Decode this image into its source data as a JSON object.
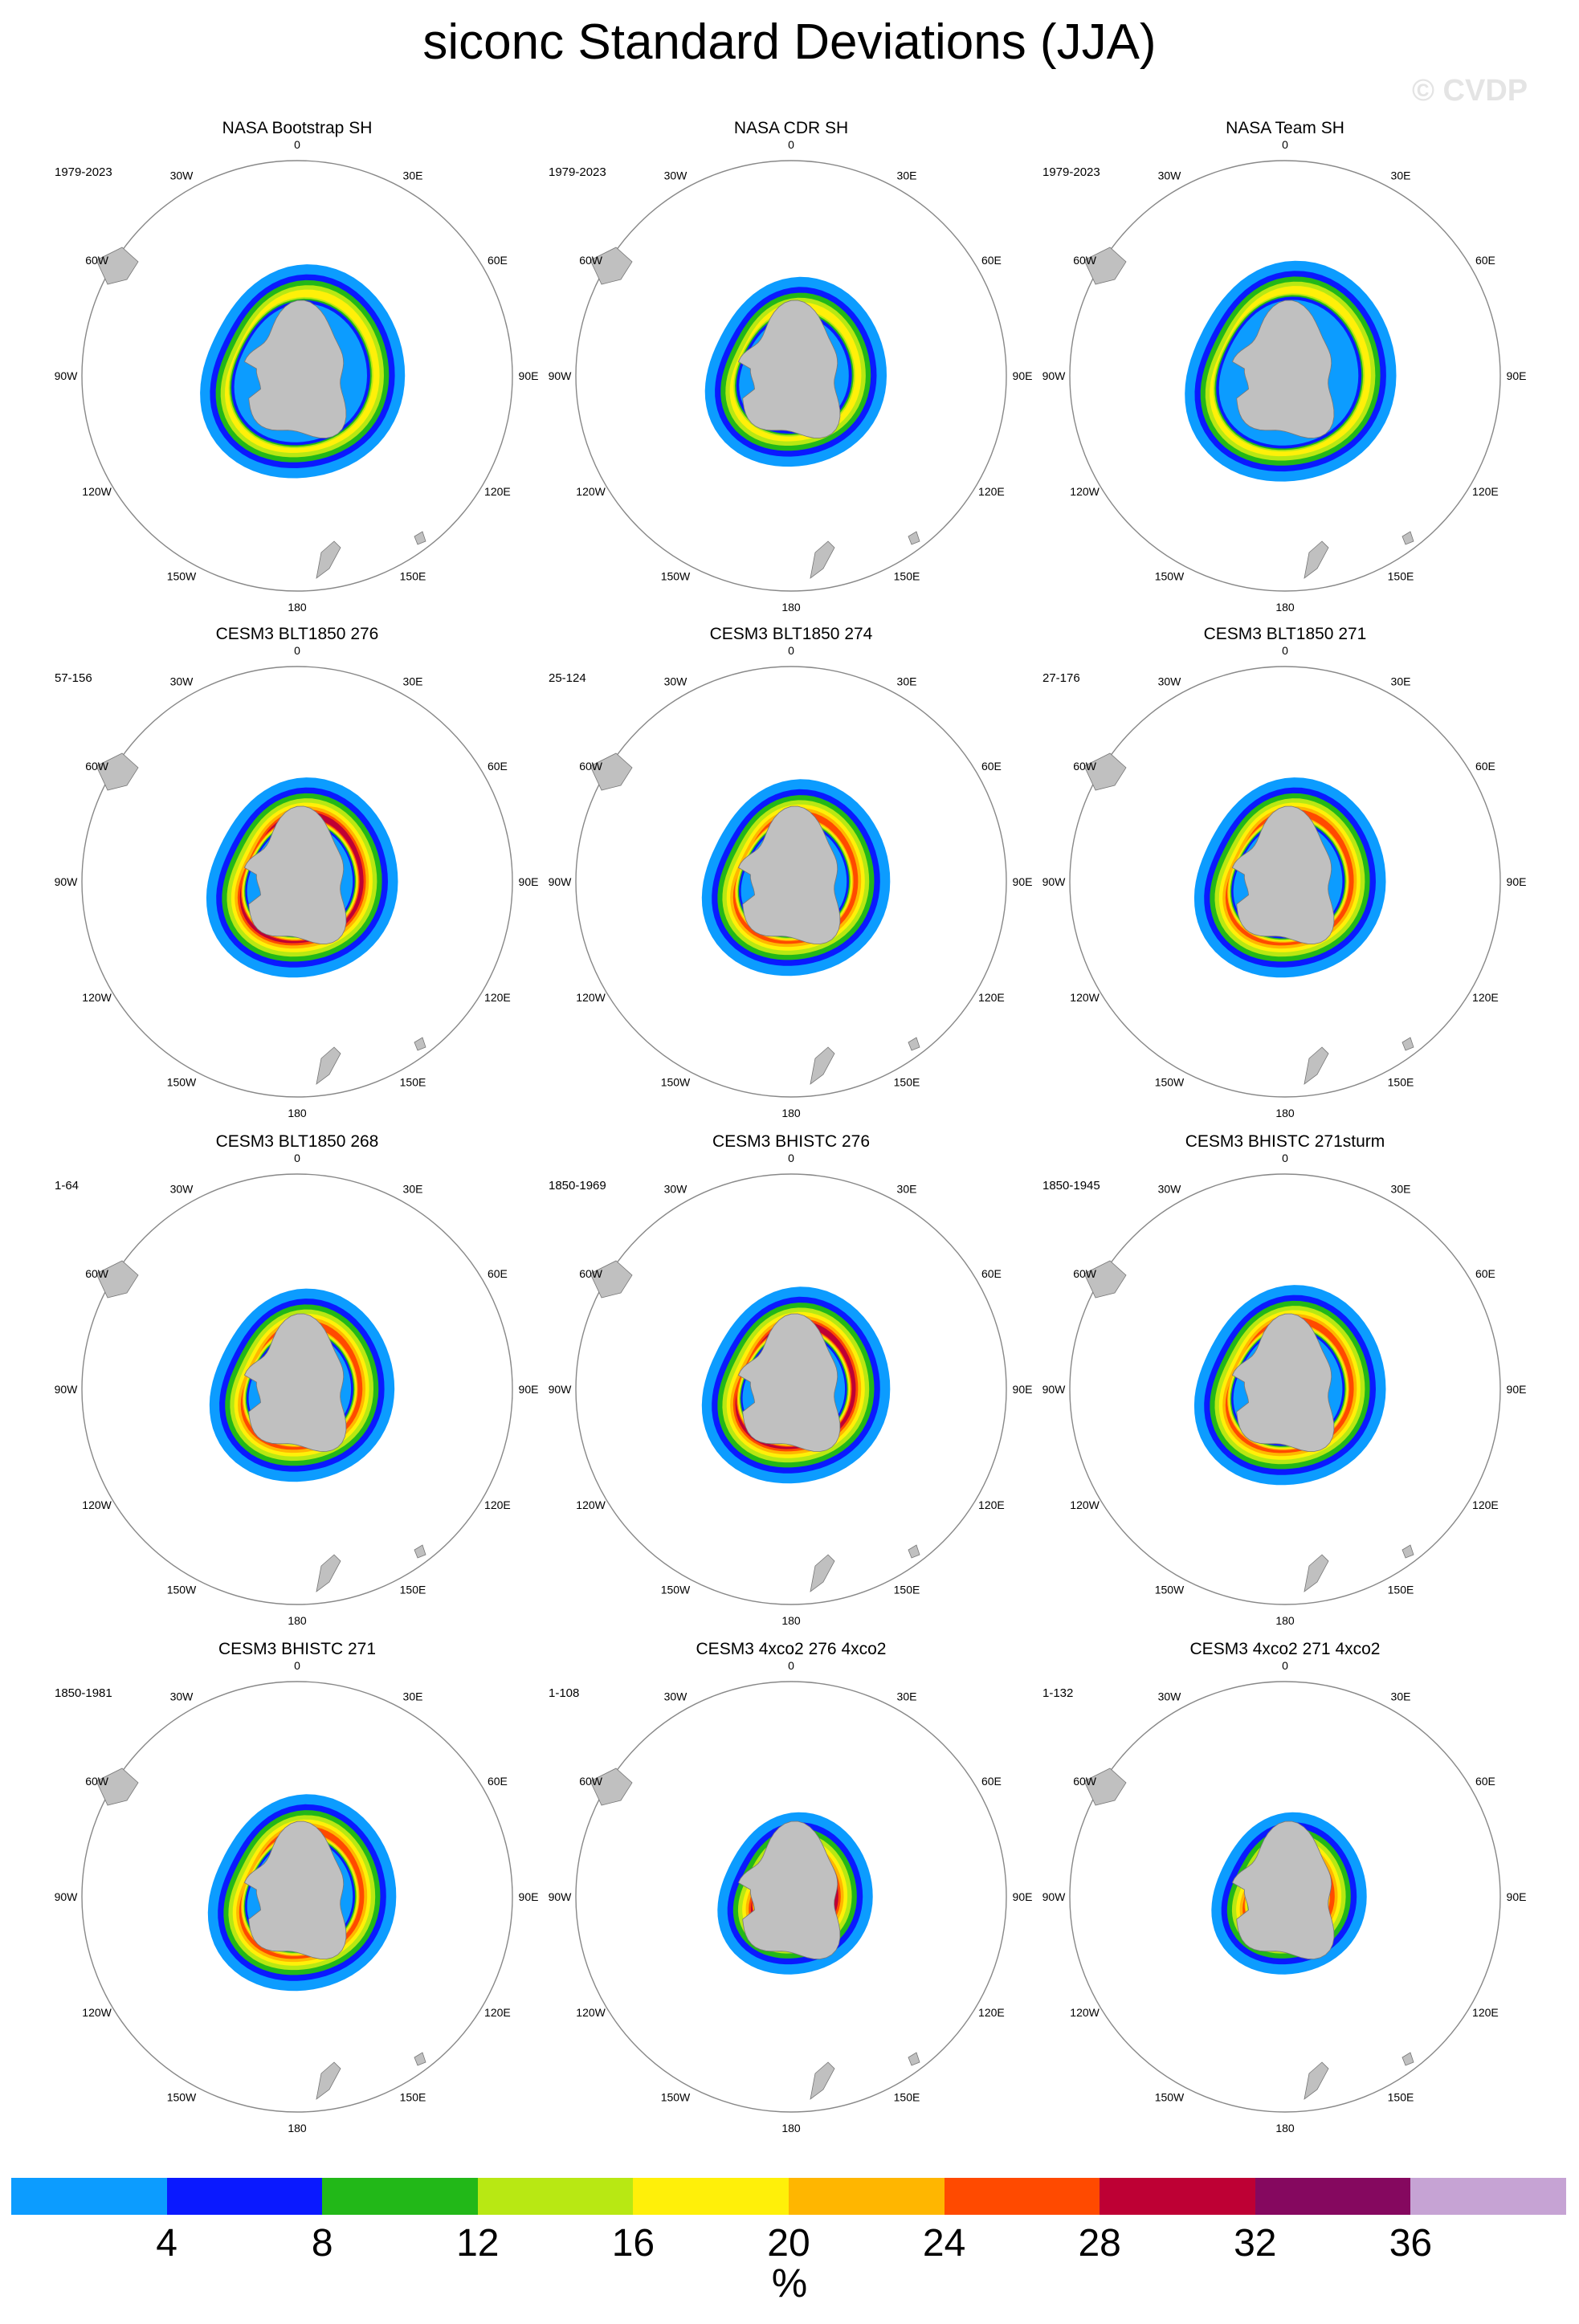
{
  "title": "siconc Standard Deviations (JJA)",
  "watermark": "© CVDP",
  "lon_labels": [
    "0",
    "30E",
    "60E",
    "90E",
    "120E",
    "150E",
    "180",
    "150W",
    "120W",
    "90W",
    "60W",
    "30W"
  ],
  "colors": {
    "land": "#c0c0c0",
    "ring": "#888888",
    "bins": [
      "#0c9cff",
      "#0a19ff",
      "#22b818",
      "#b8e813",
      "#fff009",
      "#ffb600",
      "#ff4a00",
      "#be0034",
      "#85085f",
      "#c6a3d4"
    ]
  },
  "colorbar": {
    "ticks": [
      "4",
      "8",
      "12",
      "16",
      "20",
      "24",
      "28",
      "32",
      "36"
    ],
    "units": "%"
  },
  "panels": [
    {
      "title": "NASA Bootstrap SH",
      "years": "1979-2023",
      "style": "obs",
      "max_bin": 4,
      "extent": 0.62
    },
    {
      "title": "NASA CDR SH",
      "years": "1979-2023",
      "style": "obs",
      "max_bin": 4,
      "extent": 0.55
    },
    {
      "title": "NASA Team SH",
      "years": "1979-2023",
      "style": "obs",
      "max_bin": 4,
      "extent": 0.64
    },
    {
      "title": "CESM3 BLT1850 276",
      "years": "57-156",
      "style": "model",
      "max_bin": 7,
      "extent": 0.58
    },
    {
      "title": "CESM3 BLT1850 274",
      "years": "25-124",
      "style": "model",
      "max_bin": 6,
      "extent": 0.57
    },
    {
      "title": "CESM3 BLT1850 271",
      "years": "27-176",
      "style": "model",
      "max_bin": 6,
      "extent": 0.58
    },
    {
      "title": "CESM3 BLT1850 268",
      "years": "1-64",
      "style": "model",
      "max_bin": 6,
      "extent": 0.56
    },
    {
      "title": "CESM3 BHISTC 276",
      "years": "1850-1969",
      "style": "model",
      "max_bin": 7,
      "extent": 0.57
    },
    {
      "title": "CESM3 BHISTC 271sturm",
      "years": "1850-1945",
      "style": "model",
      "max_bin": 6,
      "extent": 0.58
    },
    {
      "title": "CESM3 BHISTC 271",
      "years": "1850-1981",
      "style": "model",
      "max_bin": 6,
      "extent": 0.57
    },
    {
      "title": "CESM3 4xco2 276 4xco2",
      "years": "1-108",
      "style": "warm",
      "max_bin": 7,
      "extent": 0.47
    },
    {
      "title": "CESM3 4xco2 271 4xco2",
      "years": "1-132",
      "style": "warm",
      "max_bin": 6,
      "extent": 0.47
    }
  ]
}
